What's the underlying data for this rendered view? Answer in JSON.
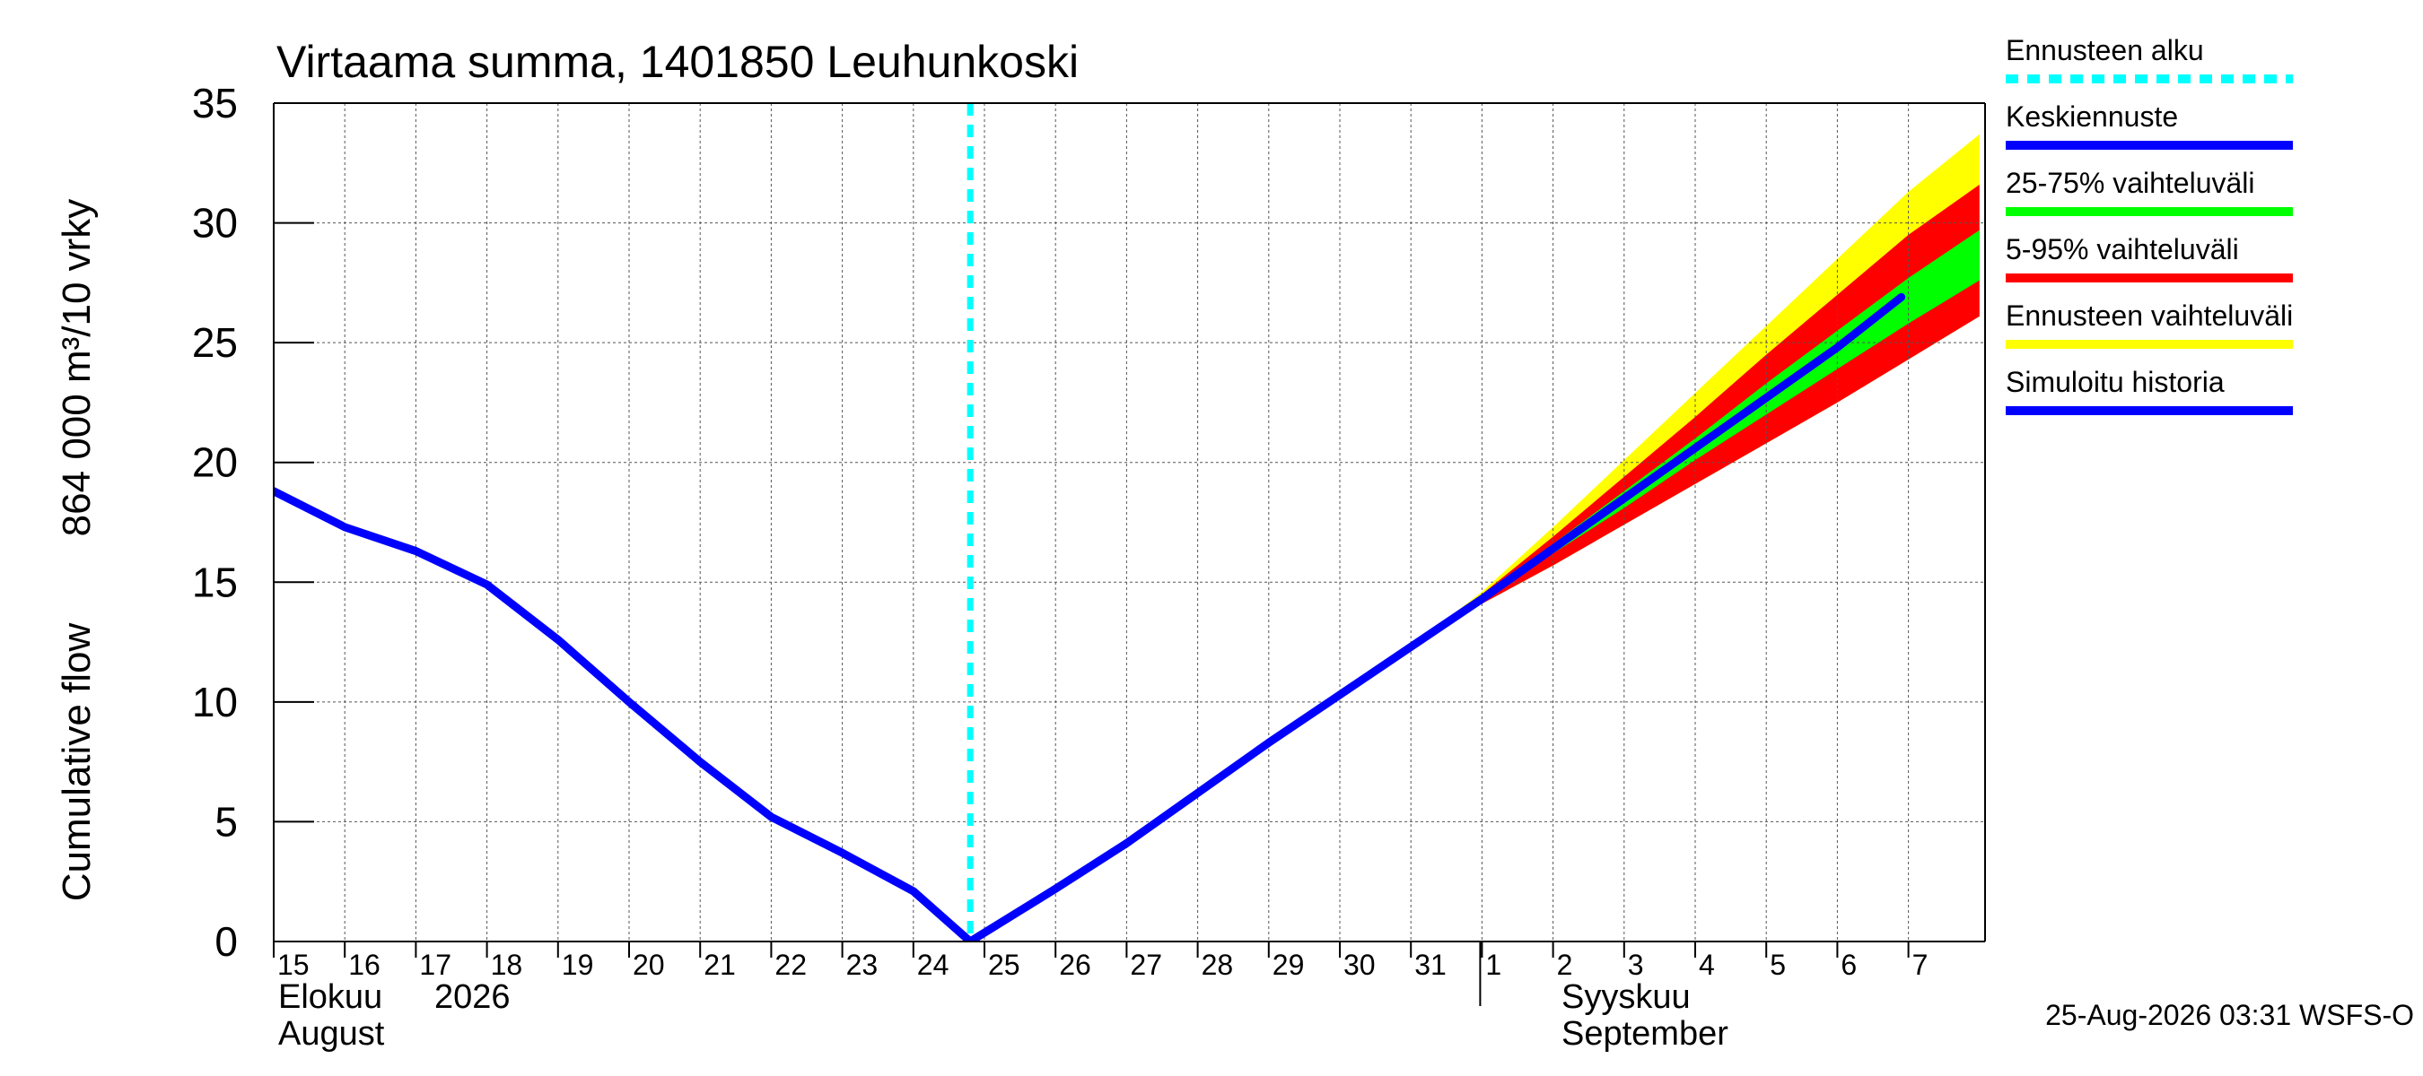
{
  "chart_data": {
    "type": "line",
    "title": "Virtaama summa, 1401850 Leuhunkoski",
    "ylabel_fi": "864 000 m³/10 vrky",
    "ylabel_en": "Cumulative flow",
    "ylim": [
      0,
      35
    ],
    "yticks": [
      0,
      5,
      10,
      15,
      20,
      25,
      30,
      35
    ],
    "x_day_labels": [
      "15",
      "16",
      "17",
      "18",
      "19",
      "20",
      "21",
      "22",
      "23",
      "24",
      "25",
      "26",
      "27",
      "28",
      "29",
      "30",
      "31",
      "1",
      "2",
      "3",
      "4",
      "5",
      "6",
      "7"
    ],
    "month_labels": {
      "aug_fi": "Elokuu",
      "year": "2026",
      "aug_en": "August",
      "sep_fi": "Syyskuu",
      "sep_en": "September"
    },
    "forecast_start_day": 24.8,
    "series": [
      {
        "name": "Simuloitu historia",
        "color": "#0000ff",
        "x": [
          15,
          16,
          17,
          18,
          19,
          20,
          21,
          22,
          23,
          24,
          24.8
        ],
        "values": [
          18.8,
          17.3,
          16.3,
          14.9,
          12.6,
          10.0,
          7.5,
          5.2,
          3.7,
          2.1,
          0.0
        ]
      },
      {
        "name": "Keskiennuste",
        "color": "#0000ff",
        "x": [
          24.8,
          26,
          27,
          28,
          29,
          30,
          31,
          32,
          33,
          34,
          35,
          36,
          37,
          37.9
        ],
        "values": [
          0.0,
          2.2,
          4.1,
          6.2,
          8.3,
          10.3,
          12.3,
          14.3,
          16.4,
          18.5,
          20.6,
          22.7,
          24.8,
          26.9
        ]
      }
    ],
    "bands": [
      {
        "name": "Ennusteen vaihteluväli",
        "color": "#ffff00",
        "x": [
          31,
          32,
          33,
          34,
          35,
          36,
          37,
          38,
          39
        ],
        "upper": [
          12.3,
          14.6,
          17.3,
          20.1,
          22.9,
          25.7,
          28.5,
          31.3,
          33.7
        ],
        "lower": [
          12.3,
          14.1,
          15.7,
          17.4,
          19.1,
          20.8,
          22.5,
          24.3,
          26.1
        ]
      },
      {
        "name": "5-95% vaihteluväli",
        "color": "#ff0000",
        "x": [
          31,
          32,
          33,
          34,
          35,
          36,
          37,
          38,
          39
        ],
        "upper": [
          12.3,
          14.5,
          16.9,
          19.4,
          21.9,
          24.5,
          27.0,
          29.5,
          31.6
        ],
        "lower": [
          12.3,
          14.1,
          15.7,
          17.4,
          19.1,
          20.8,
          22.5,
          24.3,
          26.1
        ]
      },
      {
        "name": "25-75% vaihteluväli",
        "color": "#00ff00",
        "x": [
          31,
          32,
          33,
          34,
          35,
          36,
          37,
          38,
          39
        ],
        "upper": [
          12.3,
          14.4,
          16.6,
          18.8,
          21.0,
          23.3,
          25.5,
          27.7,
          29.7
        ],
        "lower": [
          12.3,
          14.2,
          16.2,
          18.1,
          20.1,
          22.0,
          23.9,
          25.8,
          27.6
        ]
      }
    ],
    "legend": {
      "placement": "right",
      "items": [
        {
          "label": "Ennusteen alku",
          "color": "#00ffff",
          "style": "dashed"
        },
        {
          "label": "Keskiennuste",
          "color": "#0000ff",
          "style": "solid"
        },
        {
          "label": "25-75% vaihteluväli",
          "color": "#00ff00",
          "style": "solid"
        },
        {
          "label": "5-95% vaihteluväli",
          "color": "#ff0000",
          "style": "solid"
        },
        {
          "label": "Ennusteen vaihteluväli",
          "color": "#ffff00",
          "style": "solid"
        },
        {
          "label": "Simuloitu historia",
          "color": "#0000ff",
          "style": "solid"
        }
      ]
    },
    "footer": "25-Aug-2026 03:31 WSFS-O",
    "grid": true
  }
}
